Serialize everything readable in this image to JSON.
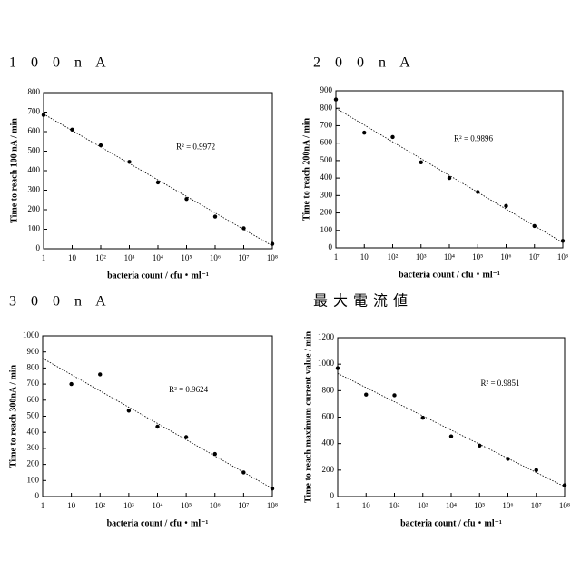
{
  "chart_data": [
    {
      "type": "scatter",
      "title": "1 0 0 n A",
      "y_label": "Time to reach 100 nA / min",
      "x_label": "bacteria count / cfu・ml⁻¹",
      "annotation": "R² = 0.9972",
      "xscale": "log",
      "xlim": [
        1,
        100000000
      ],
      "ylim": [
        0,
        800
      ],
      "xticks": [
        1,
        10,
        {
          "value": 100,
          "label": "10²"
        },
        {
          "value": 1000,
          "label": "10³"
        },
        {
          "value": 10000,
          "label": "10⁴"
        },
        {
          "value": 100000,
          "label": "10⁵"
        },
        {
          "value": 1000000,
          "label": "10⁶"
        },
        {
          "value": 10000000,
          "label": "10⁷"
        },
        {
          "value": 100000000,
          "label": "10⁸"
        }
      ],
      "yticks": [
        0,
        100,
        200,
        300,
        400,
        500,
        600,
        700,
        800
      ],
      "series": [
        {
          "color": "#000000",
          "x": [
            1,
            10,
            100,
            1000,
            10000,
            100000,
            1000000,
            10000000,
            100000000
          ],
          "values": [
            685,
            610,
            530,
            445,
            340,
            255,
            165,
            105,
            25
          ]
        }
      ],
      "trendline": {
        "x": [
          1,
          100000000
        ],
        "values": [
          690,
          15
        ]
      }
    },
    {
      "type": "scatter",
      "title": "2 0 0 n A",
      "y_label": "Time to reach 200nA / min",
      "x_label": "bacteria count / cfu・ml⁻¹",
      "annotation": "R² = 0.9896",
      "xscale": "log",
      "xlim": [
        1,
        100000000
      ],
      "ylim": [
        0,
        900
      ],
      "xticks": [
        1,
        10,
        {
          "value": 100,
          "label": "10²"
        },
        {
          "value": 1000,
          "label": "10³"
        },
        {
          "value": 10000,
          "label": "10⁴"
        },
        {
          "value": 100000,
          "label": "10⁵"
        },
        {
          "value": 1000000,
          "label": "10⁶"
        },
        {
          "value": 10000000,
          "label": "10⁷"
        },
        {
          "value": 100000000,
          "label": "10⁸"
        }
      ],
      "yticks": [
        0,
        100,
        200,
        300,
        400,
        500,
        600,
        700,
        800,
        900
      ],
      "series": [
        {
          "color": "#000000",
          "x": [
            1,
            10,
            100,
            1000,
            10000,
            100000,
            1000000,
            10000000,
            100000000
          ],
          "values": [
            850,
            660,
            635,
            490,
            400,
            320,
            240,
            125,
            40
          ]
        }
      ],
      "trendline": {
        "x": [
          1,
          100000000
        ],
        "values": [
          800,
          30
        ]
      }
    },
    {
      "type": "scatter",
      "title": "3 0 0 n A",
      "y_label": "Time to reach 300nA / min",
      "x_label": "bacteria count / cfu・ml⁻¹",
      "annotation": "R² = 0.9624",
      "xscale": "log",
      "xlim": [
        1,
        100000000
      ],
      "ylim": [
        0,
        1000
      ],
      "xticks": [
        1,
        10,
        {
          "value": 100,
          "label": "10²"
        },
        {
          "value": 1000,
          "label": "10³"
        },
        {
          "value": 10000,
          "label": "10⁴"
        },
        {
          "value": 100000,
          "label": "10⁵"
        },
        {
          "value": 1000000,
          "label": "10⁶"
        },
        {
          "value": 10000000,
          "label": "10⁷"
        },
        {
          "value": 100000000,
          "label": "10⁸"
        }
      ],
      "yticks": [
        0,
        100,
        200,
        300,
        400,
        500,
        600,
        700,
        800,
        900,
        1000
      ],
      "series": [
        {
          "color": "#000000",
          "x": [
            10,
            100,
            1000,
            10000,
            100000,
            1000000,
            10000000,
            100000000
          ],
          "values": [
            700,
            760,
            535,
            435,
            370,
            265,
            150,
            50
          ]
        }
      ],
      "trendline": {
        "x": [
          1,
          100000000
        ],
        "values": [
          860,
          50
        ]
      }
    },
    {
      "type": "scatter",
      "title": "最大電流値",
      "y_label": "Time to reach maximum current value / min",
      "x_label": "bacteria count / cfu・ml⁻¹",
      "annotation": "R² = 0.9851",
      "xscale": "log",
      "xlim": [
        1,
        100000000
      ],
      "ylim": [
        0,
        1200
      ],
      "xticks": [
        1,
        10,
        {
          "value": 100,
          "label": "10²"
        },
        {
          "value": 1000,
          "label": "10³"
        },
        {
          "value": 10000,
          "label": "10⁴"
        },
        {
          "value": 100000,
          "label": "10⁵"
        },
        {
          "value": 1000000,
          "label": "10⁶"
        },
        {
          "value": 10000000,
          "label": "10⁷"
        },
        {
          "value": 100000000,
          "label": "10⁸"
        }
      ],
      "yticks": [
        0,
        200,
        400,
        600,
        800,
        1000,
        1200
      ],
      "series": [
        {
          "color": "#000000",
          "x": [
            1,
            10,
            100,
            1000,
            10000,
            100000,
            1000000,
            10000000,
            100000000
          ],
          "values": [
            970,
            770,
            765,
            595,
            455,
            385,
            285,
            200,
            85
          ]
        }
      ],
      "trendline": {
        "x": [
          1,
          100000000
        ],
        "values": [
          930,
          75
        ]
      }
    }
  ]
}
